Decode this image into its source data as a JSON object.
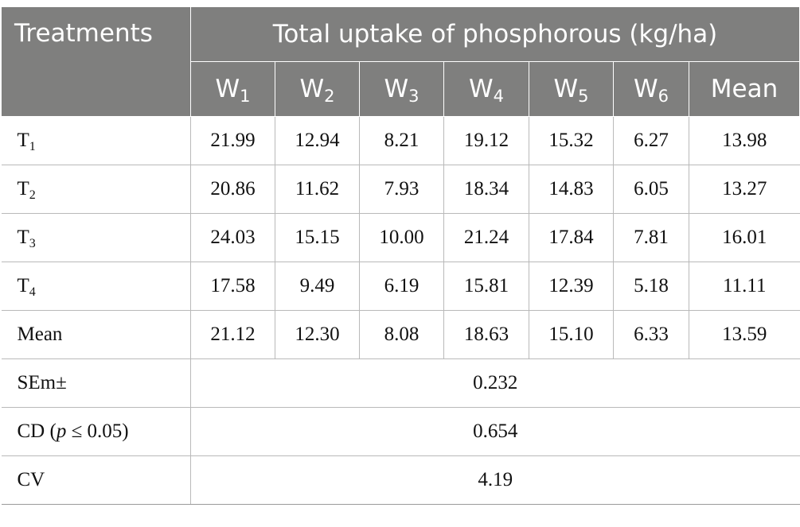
{
  "header": {
    "treatments": "Treatments",
    "group_title": "Total uptake of phosphorous (kg/ha)",
    "columns": [
      {
        "base": "W",
        "sub": "1"
      },
      {
        "base": "W",
        "sub": "2"
      },
      {
        "base": "W",
        "sub": "3"
      },
      {
        "base": "W",
        "sub": "4"
      },
      {
        "base": "W",
        "sub": "5"
      },
      {
        "base": "W",
        "sub": "6"
      }
    ],
    "mean": "Mean"
  },
  "rows": [
    {
      "label": "T",
      "sub": "1",
      "values": [
        "21.99",
        "12.94",
        "8.21",
        "19.12",
        "15.32",
        "6.27",
        "13.98"
      ]
    },
    {
      "label": "T",
      "sub": "2",
      "values": [
        "20.86",
        "11.62",
        "7.93",
        "18.34",
        "14.83",
        "6.05",
        "13.27"
      ]
    },
    {
      "label": "T",
      "sub": "3",
      "values": [
        "24.03",
        "15.15",
        "10.00",
        "21.24",
        "17.84",
        "7.81",
        "16.01"
      ]
    },
    {
      "label": "T",
      "sub": "4",
      "values": [
        "17.58",
        "9.49",
        "6.19",
        "15.81",
        "12.39",
        "5.18",
        "11.11"
      ]
    },
    {
      "label": "Mean",
      "sub": "",
      "values": [
        "21.12",
        "12.30",
        "8.08",
        "18.63",
        "15.10",
        "6.33",
        "13.59"
      ]
    }
  ],
  "stats": {
    "sem": {
      "label": "SEm±",
      "value": "0.232"
    },
    "cd": {
      "label_prefix": "CD (",
      "label_var": "p",
      "label_suffix": " ≤ 0.05)",
      "value": "0.654"
    },
    "cv": {
      "label": "CV",
      "value": "4.19"
    }
  }
}
